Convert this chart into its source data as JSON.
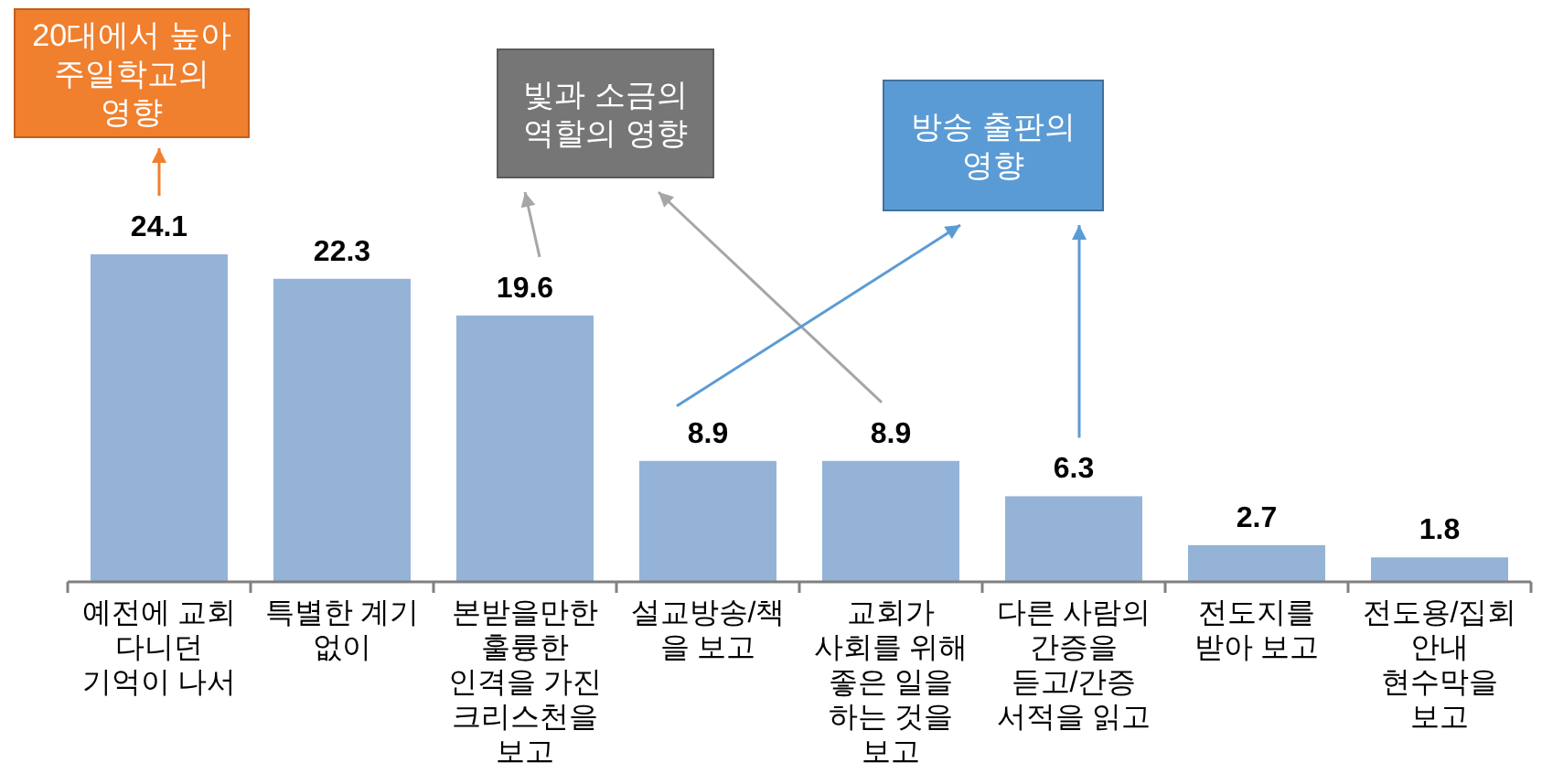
{
  "chart_data": {
    "type": "bar",
    "categories": [
      "예전에 교회 다니던 기억이 나서",
      "특별한 계기 없이",
      "본받을만한 훌륭한 인격을 가진 크리스천을 보고",
      "설교방송/책을 보고",
      "교회가 사회를 위해 좋은 일을 하는 것을 보고",
      "다른 사람의 간증을 듣고/간증 서적을 읽고",
      "전도지를 받아 보고",
      "전도용/집회 안내 현수막을 보고"
    ],
    "values": [
      24.1,
      22.3,
      19.6,
      8.9,
      8.9,
      6.3,
      2.7,
      1.8
    ],
    "color": "#95b3d7",
    "data_labels": true,
    "annotations": [
      "20대에서 높아 주일학교의 영향",
      "빛과 소금의 역할의 영향",
      "방송 출판의 영향"
    ]
  }
}
